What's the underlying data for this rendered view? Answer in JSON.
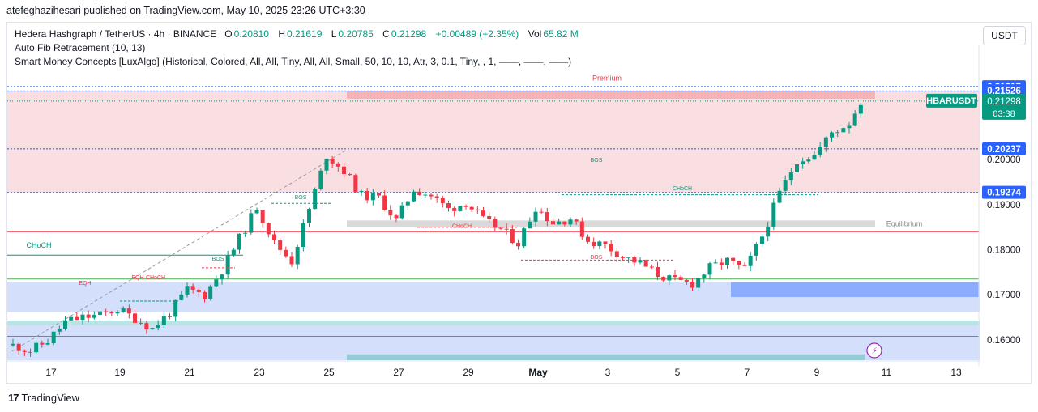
{
  "header": {
    "published": "atefeghazihesari published on TradingView.com, May 10, 2025 23:26 UTC+3:30"
  },
  "legend": {
    "symbol": "Hedera Hashgraph / TetherUS · 4h · BINANCE",
    "open_label": "O",
    "open": "0.20810",
    "high_label": "H",
    "high": "0.21619",
    "low_label": "L",
    "low": "0.20785",
    "close_label": "C",
    "close": "0.21298",
    "change": "+0.00489 (+2.35%)",
    "vol_label": "Vol",
    "vol": "65.82 M",
    "indicator1": "Auto Fib Retracement (10, 13)",
    "indicator2": "Smart Money Concepts [LuxAlgo] (Historical, Colored, All, All, Tiny, All, All, Small, 50, 10, 10, Atr, 3, 0.1, Tiny, , 1, ——, ——, ——)"
  },
  "currency_button": "USDT",
  "footer": {
    "logo": "17",
    "brand": "TradingView"
  },
  "colors": {
    "up": "#089981",
    "down": "#f23645",
    "premium": "#f8d7da",
    "discount": "#c9d7fb",
    "equilibrium": "#d9d9d9",
    "blue_line": "#2962ff"
  },
  "chart_data": {
    "type": "candlestick",
    "symbol": "HBARUSDT",
    "timeframe": "4h",
    "x_tick_labels": [
      "17",
      "19",
      "21",
      "23",
      "25",
      "27",
      "29",
      "May",
      "3",
      "5",
      "7",
      "9",
      "11",
      "13"
    ],
    "y_tick_labels": [
      "0.16000",
      "0.17000",
      "0.18000",
      "0.19000",
      "0.20000"
    ],
    "ylim": [
      0.1555,
      0.2205
    ],
    "price_labels": [
      {
        "value": 0.21617,
        "text": "0.21617",
        "color": "#2962ff"
      },
      {
        "value": 0.21526,
        "text": "0.21526",
        "color": "#2962ff"
      },
      {
        "value": 0.21298,
        "text": "HBARUSDT",
        "text2": "0.21298",
        "text3": "03:38",
        "color": "#089981"
      },
      {
        "value": 0.20237,
        "text": "0.20237",
        "color": "#2962ff"
      },
      {
        "value": 0.19274,
        "text": "0.19274",
        "color": "#2962ff"
      }
    ],
    "zone_labels": {
      "premium": "Premium",
      "equilibrium": "Equilibrium"
    },
    "annotations": [
      "BOS",
      "BOS",
      "BOS",
      "BOS",
      "CHoCH",
      "CHoCH",
      "CHoCH",
      "CHoCH",
      "EQH",
      "EQH"
    ],
    "close_path": [
      [
        "2025-04-16 12:00",
        0.1588
      ],
      [
        "2025-04-17 00:00",
        0.1576
      ],
      [
        "2025-04-17 12:00",
        0.1598
      ],
      [
        "2025-04-18 00:00",
        0.164
      ],
      [
        "2025-04-18 12:00",
        0.165
      ],
      [
        "2025-04-19 00:00",
        0.1655
      ],
      [
        "2025-04-19 12:00",
        0.1668
      ],
      [
        "2025-04-20 00:00",
        0.1648
      ],
      [
        "2025-04-20 12:00",
        0.1625
      ],
      [
        "2025-04-21 00:00",
        0.166
      ],
      [
        "2025-04-21 12:00",
        0.1712
      ],
      [
        "2025-04-22 00:00",
        0.17
      ],
      [
        "2025-04-22 12:00",
        0.1755
      ],
      [
        "2025-04-23 00:00",
        0.1825
      ],
      [
        "2025-04-23 12:00",
        0.1895
      ],
      [
        "2025-04-24 00:00",
        0.1815
      ],
      [
        "2025-04-24 12:00",
        0.1775
      ],
      [
        "2025-04-25 00:00",
        0.189
      ],
      [
        "2025-04-25 12:00",
        0.201
      ],
      [
        "2025-04-26 00:00",
        0.1975
      ],
      [
        "2025-04-26 12:00",
        0.192
      ],
      [
        "2025-04-27 00:00",
        0.1915
      ],
      [
        "2025-04-27 12:00",
        0.1865
      ],
      [
        "2025-04-28 00:00",
        0.1935
      ],
      [
        "2025-04-28 12:00",
        0.192
      ],
      [
        "2025-04-29 00:00",
        0.189
      ],
      [
        "2025-04-29 12:00",
        0.1905
      ],
      [
        "2025-04-30 00:00",
        0.1865
      ],
      [
        "2025-04-30 12:00",
        0.1845
      ],
      [
        "2025-05-01 00:00",
        0.1815
      ],
      [
        "2025-05-01 12:00",
        0.1895
      ],
      [
        "2025-05-02 00:00",
        0.186
      ],
      [
        "2025-05-02 12:00",
        0.187
      ],
      [
        "2025-05-03 00:00",
        0.182
      ],
      [
        "2025-05-03 12:00",
        0.181
      ],
      [
        "2025-05-04 00:00",
        0.1785
      ],
      [
        "2025-05-04 12:00",
        0.177
      ],
      [
        "2025-05-05 00:00",
        0.1745
      ],
      [
        "2025-05-05 12:00",
        0.173
      ],
      [
        "2025-05-06 00:00",
        0.1725
      ],
      [
        "2025-05-06 12:00",
        0.176
      ],
      [
        "2025-05-07 00:00",
        0.1775
      ],
      [
        "2025-05-07 12:00",
        0.1755
      ],
      [
        "2025-05-08 00:00",
        0.183
      ],
      [
        "2025-05-08 12:00",
        0.1925
      ],
      [
        "2025-05-09 00:00",
        0.2
      ],
      [
        "2025-05-09 12:00",
        0.201
      ],
      [
        "2025-05-10 00:00",
        0.206
      ],
      [
        "2025-05-10 12:00",
        0.2081
      ],
      [
        "2025-05-10 20:00",
        0.21298
      ]
    ]
  }
}
